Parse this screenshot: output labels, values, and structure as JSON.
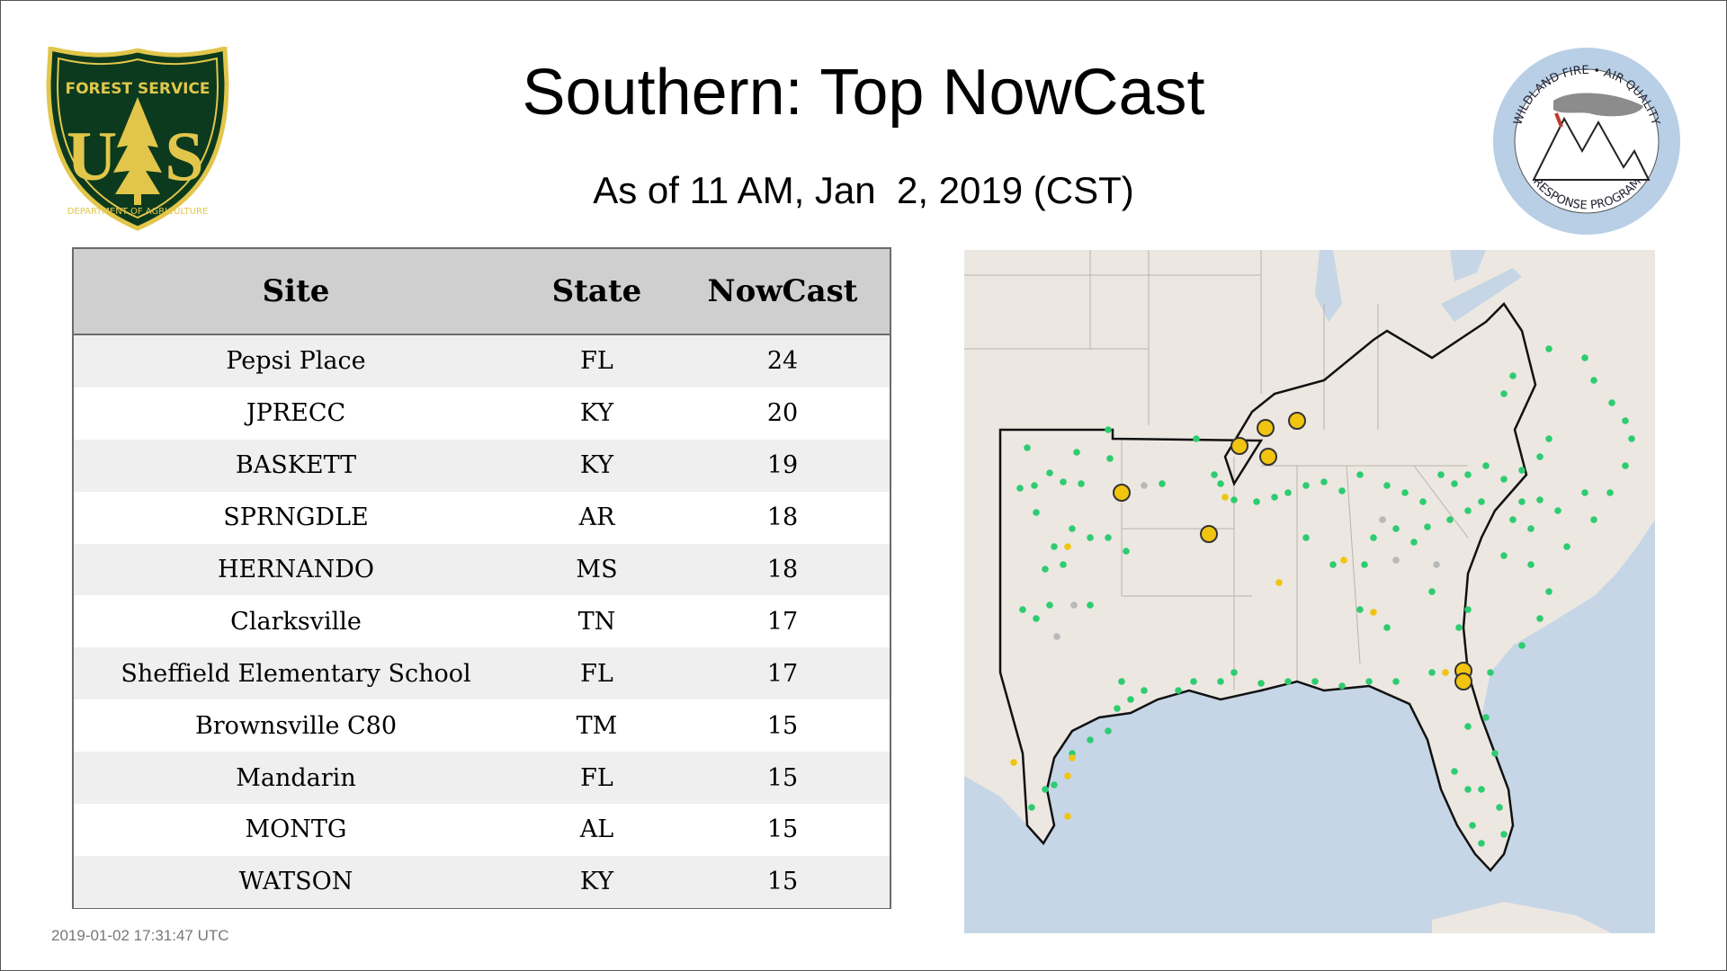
{
  "header": {
    "title": "Southern: Top NowCast",
    "subtitle": "As of 11 AM, Jan  2, 2019 (CST)"
  },
  "logos": {
    "left": {
      "icon": "usfs-shield-logo",
      "top_text": "FOREST SERVICE",
      "letters": "U S",
      "bottom_text": "DEPARTMENT OF AGRICULTURE"
    },
    "right": {
      "icon": "wildland-fire-air-quality-logo",
      "top_text": "WILDLAND FIRE • AIR QUALITY",
      "bottom_text": "RESPONSE PROGRAM"
    }
  },
  "table": {
    "headers": [
      "Site",
      "State",
      "NowCast"
    ],
    "rows": [
      {
        "site": "Pepsi Place",
        "state": "FL",
        "nowcast": "24"
      },
      {
        "site": "JPRECC",
        "state": "KY",
        "nowcast": "20"
      },
      {
        "site": "BASKETT",
        "state": "KY",
        "nowcast": "19"
      },
      {
        "site": "SPRNGDLE",
        "state": "AR",
        "nowcast": "18"
      },
      {
        "site": "HERNANDO",
        "state": "MS",
        "nowcast": "18"
      },
      {
        "site": "Clarksville",
        "state": "TN",
        "nowcast": "17"
      },
      {
        "site": "Sheffield Elementary School",
        "state": "FL",
        "nowcast": "17"
      },
      {
        "site": "Brownsville C80",
        "state": "TM",
        "nowcast": "15"
      },
      {
        "site": "Mandarin",
        "state": "FL",
        "nowcast": "15"
      },
      {
        "site": "MONTG",
        "state": "AL",
        "nowcast": "15"
      },
      {
        "site": "WATSON",
        "state": "KY",
        "nowcast": "15"
      }
    ]
  },
  "map": {
    "icon": "southern-region-map",
    "colors": {
      "land": "#ece7e1",
      "water": "#c6d6e6",
      "good": "#2ecc71",
      "moderate": "#f1c40f",
      "no_data": "#b8b8b8",
      "top_site_outline": "#333333"
    }
  },
  "footer": {
    "timestamp": "2019-01-02 17:31:47 UTC"
  }
}
